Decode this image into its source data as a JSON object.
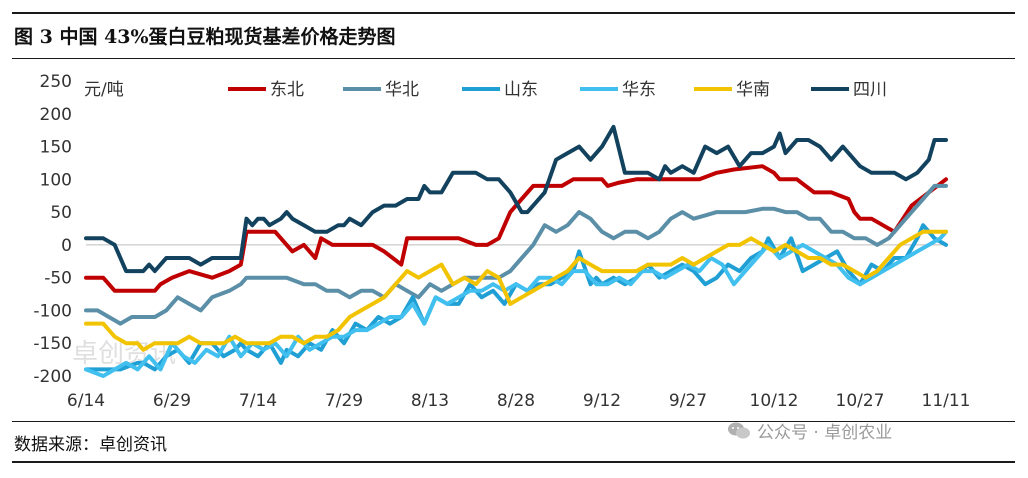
{
  "figure": {
    "title": "图 3 中国 43%蛋白豆粕现货基差价格走势图",
    "source": "数据来源：卓创资讯",
    "wechat_mark": "公众号 · 卓创农业",
    "watermark": "卓创资讯"
  },
  "chart_data": {
    "type": "line",
    "ylabel": "元/吨",
    "ylim": [
      -200,
      250
    ],
    "yticks": [
      -200,
      -150,
      -100,
      -50,
      0,
      50,
      100,
      150,
      200,
      250
    ],
    "x_tick_labels": [
      "6/14",
      "6/29",
      "7/14",
      "7/29",
      "8/13",
      "8/28",
      "9/12",
      "9/27",
      "10/12",
      "10/27",
      "11/11"
    ],
    "x_tick_day": [
      0,
      15,
      30,
      45,
      60,
      75,
      90,
      105,
      120,
      135,
      150
    ],
    "x_unit": "days since 6/14",
    "grid": false,
    "legend_position": "top",
    "series": [
      {
        "name": "东北",
        "color": "#c00000",
        "x": [
          0,
          3,
          5,
          8,
          12,
          13,
          15,
          18,
          22,
          25,
          27,
          28,
          30,
          33,
          35,
          36,
          38,
          40,
          41,
          43,
          45,
          47,
          50,
          52,
          55,
          56,
          58,
          60,
          62,
          65,
          68,
          70,
          72,
          74,
          76,
          78,
          80,
          83,
          85,
          90,
          91,
          93,
          96,
          98,
          100,
          103,
          105,
          107,
          110,
          113,
          118,
          120,
          121,
          124,
          127,
          130,
          133,
          134,
          135,
          137,
          139,
          141,
          144,
          147,
          150
        ],
        "y": [
          -50,
          -50,
          -70,
          -70,
          -70,
          -60,
          -50,
          -40,
          -50,
          -40,
          -30,
          20,
          20,
          20,
          0,
          -10,
          0,
          -20,
          10,
          0,
          0,
          0,
          0,
          -10,
          -30,
          10,
          10,
          10,
          10,
          10,
          0,
          0,
          10,
          50,
          70,
          90,
          90,
          90,
          100,
          100,
          90,
          95,
          100,
          100,
          100,
          100,
          100,
          100,
          110,
          115,
          120,
          110,
          100,
          100,
          80,
          80,
          70,
          50,
          40,
          40,
          30,
          20,
          60,
          80,
          100
        ]
      },
      {
        "name": "华北",
        "color": "#5b8fa8",
        "x": [
          0,
          2,
          4,
          6,
          8,
          10,
          12,
          14,
          16,
          18,
          20,
          22,
          25,
          27,
          28,
          30,
          32,
          35,
          38,
          40,
          42,
          44,
          46,
          48,
          50,
          52,
          54,
          56,
          58,
          60,
          62,
          64,
          66,
          68,
          70,
          72,
          74,
          76,
          78,
          80,
          82,
          84,
          86,
          88,
          90,
          92,
          94,
          96,
          98,
          100,
          102,
          104,
          106,
          108,
          110,
          112,
          115,
          118,
          120,
          122,
          124,
          126,
          128,
          130,
          132,
          134,
          136,
          138,
          140,
          142,
          144,
          146,
          148,
          150
        ],
        "y": [
          -100,
          -100,
          -110,
          -120,
          -110,
          -110,
          -110,
          -100,
          -80,
          -90,
          -100,
          -80,
          -70,
          -60,
          -50,
          -50,
          -50,
          -50,
          -60,
          -60,
          -70,
          -70,
          -80,
          -70,
          -70,
          -80,
          -60,
          -70,
          -80,
          -60,
          -70,
          -60,
          -50,
          -50,
          -50,
          -50,
          -40,
          -20,
          0,
          30,
          20,
          30,
          50,
          40,
          20,
          10,
          20,
          20,
          10,
          20,
          40,
          50,
          40,
          45,
          50,
          50,
          50,
          55,
          55,
          50,
          50,
          40,
          40,
          20,
          20,
          10,
          10,
          0,
          10,
          30,
          50,
          70,
          90,
          90
        ]
      },
      {
        "name": "山东",
        "color": "#1f9fd4",
        "x": [
          0,
          3,
          6,
          9,
          10,
          12,
          14,
          16,
          18,
          20,
          22,
          24,
          26,
          27,
          28,
          30,
          32,
          34,
          35,
          37,
          39,
          41,
          43,
          45,
          47,
          49,
          51,
          53,
          55,
          57,
          59,
          61,
          63,
          65,
          67,
          69,
          71,
          73,
          75,
          77,
          79,
          81,
          83,
          85,
          86,
          88,
          89,
          90,
          92,
          94,
          96,
          98,
          100,
          102,
          104,
          106,
          108,
          110,
          112,
          114,
          116,
          118,
          119,
          121,
          123,
          125,
          127,
          129,
          131,
          133,
          135,
          137,
          139,
          141,
          143,
          145,
          146,
          148,
          150
        ],
        "y": [
          -190,
          -190,
          -190,
          -180,
          -180,
          -190,
          -170,
          -160,
          -180,
          -150,
          -150,
          -170,
          -160,
          -150,
          -160,
          -170,
          -150,
          -180,
          -160,
          -170,
          -150,
          -160,
          -130,
          -150,
          -120,
          -130,
          -110,
          -120,
          -110,
          -80,
          -120,
          -80,
          -90,
          -90,
          -60,
          -80,
          -70,
          -90,
          -60,
          -70,
          -60,
          -60,
          -50,
          -40,
          -10,
          -60,
          -50,
          -60,
          -50,
          -60,
          -50,
          -30,
          -50,
          -40,
          -30,
          -40,
          -60,
          -50,
          -30,
          -40,
          -20,
          -10,
          10,
          -20,
          10,
          -40,
          -30,
          -20,
          -10,
          -40,
          -60,
          -30,
          -40,
          -20,
          -20,
          10,
          30,
          10,
          0
        ]
      },
      {
        "name": "华东",
        "color": "#41c0f0",
        "x": [
          0,
          3,
          5,
          7,
          9,
          11,
          13,
          15,
          17,
          19,
          21,
          23,
          25,
          27,
          29,
          31,
          33,
          35,
          37,
          39,
          41,
          43,
          45,
          47,
          49,
          51,
          53,
          55,
          57,
          59,
          61,
          63,
          65,
          67,
          69,
          71,
          73,
          75,
          77,
          79,
          81,
          83,
          85,
          87,
          89,
          91,
          93,
          95,
          97,
          99,
          101,
          103,
          105,
          107,
          109,
          111,
          113,
          115,
          117,
          119,
          121,
          123,
          125,
          127,
          129,
          131,
          133,
          135,
          137,
          139,
          141,
          143,
          145,
          147,
          149,
          150
        ],
        "y": [
          -190,
          -200,
          -190,
          -180,
          -190,
          -170,
          -190,
          -150,
          -170,
          -180,
          -160,
          -170,
          -140,
          -170,
          -150,
          -160,
          -150,
          -170,
          -140,
          -160,
          -150,
          -140,
          -140,
          -130,
          -130,
          -120,
          -110,
          -110,
          -90,
          -120,
          -80,
          -90,
          -80,
          -70,
          -70,
          -60,
          -70,
          -60,
          -70,
          -50,
          -50,
          -60,
          -40,
          -40,
          -60,
          -60,
          -50,
          -60,
          -40,
          -40,
          -50,
          -40,
          -30,
          -40,
          -20,
          -30,
          -60,
          -40,
          -20,
          0,
          -20,
          -10,
          0,
          -10,
          -20,
          -30,
          -50,
          -60,
          -50,
          -40,
          -30,
          -20,
          -10,
          0,
          10,
          20
        ]
      },
      {
        "name": "华南",
        "color": "#f2c300",
        "x": [
          0,
          3,
          5,
          7,
          9,
          10,
          12,
          14,
          16,
          18,
          20,
          22,
          24,
          26,
          28,
          30,
          32,
          34,
          36,
          38,
          40,
          42,
          44,
          46,
          48,
          50,
          52,
          54,
          56,
          58,
          60,
          62,
          64,
          66,
          68,
          70,
          72,
          74,
          76,
          78,
          80,
          82,
          84,
          86,
          88,
          90,
          92,
          94,
          96,
          98,
          100,
          102,
          104,
          106,
          108,
          110,
          112,
          114,
          116,
          118,
          120,
          122,
          124,
          126,
          128,
          130,
          132,
          134,
          136,
          138,
          140,
          142,
          144,
          146,
          148,
          150
        ],
        "y": [
          -120,
          -120,
          -140,
          -150,
          -150,
          -160,
          -150,
          -150,
          -150,
          -140,
          -150,
          -150,
          -150,
          -140,
          -150,
          -150,
          -150,
          -140,
          -140,
          -150,
          -140,
          -140,
          -130,
          -110,
          -100,
          -90,
          -80,
          -60,
          -40,
          -50,
          -40,
          -30,
          -60,
          -50,
          -60,
          -40,
          -50,
          -90,
          -80,
          -70,
          -60,
          -50,
          -40,
          -20,
          -30,
          -40,
          -40,
          -40,
          -40,
          -30,
          -30,
          -30,
          -20,
          -30,
          -20,
          -10,
          0,
          0,
          10,
          0,
          -10,
          0,
          -10,
          -20,
          -20,
          -30,
          -30,
          -40,
          -50,
          -40,
          -20,
          0,
          10,
          20,
          20,
          20
        ]
      },
      {
        "name": "四川",
        "color": "#12425e",
        "x": [
          0,
          3,
          5,
          6,
          7,
          9,
          10,
          11,
          12,
          13,
          14,
          16,
          18,
          20,
          22,
          25,
          27,
          28,
          29,
          30,
          31,
          32,
          34,
          35,
          36,
          38,
          40,
          42,
          44,
          45,
          46,
          48,
          50,
          52,
          54,
          56,
          58,
          59,
          60,
          62,
          64,
          66,
          68,
          70,
          72,
          74,
          76,
          77,
          78,
          80,
          82,
          84,
          86,
          87,
          88,
          90,
          92,
          94,
          96,
          98,
          100,
          101,
          102,
          104,
          106,
          108,
          110,
          112,
          114,
          116,
          118,
          120,
          121,
          122,
          124,
          126,
          128,
          130,
          132,
          134,
          135,
          137,
          139,
          141,
          143,
          145,
          147,
          148,
          150
        ],
        "y": [
          10,
          10,
          0,
          -20,
          -40,
          -40,
          -40,
          -30,
          -40,
          -30,
          -20,
          -20,
          -20,
          -30,
          -20,
          -20,
          -20,
          40,
          30,
          40,
          40,
          30,
          40,
          50,
          40,
          30,
          20,
          20,
          30,
          30,
          40,
          30,
          50,
          60,
          60,
          70,
          70,
          90,
          80,
          80,
          110,
          110,
          110,
          100,
          100,
          80,
          50,
          50,
          60,
          80,
          130,
          140,
          150,
          140,
          130,
          150,
          180,
          110,
          110,
          110,
          100,
          120,
          110,
          120,
          110,
          150,
          140,
          150,
          120,
          140,
          140,
          150,
          170,
          140,
          160,
          160,
          150,
          130,
          150,
          130,
          120,
          110,
          110,
          110,
          100,
          110,
          130,
          160,
          160
        ]
      }
    ]
  }
}
